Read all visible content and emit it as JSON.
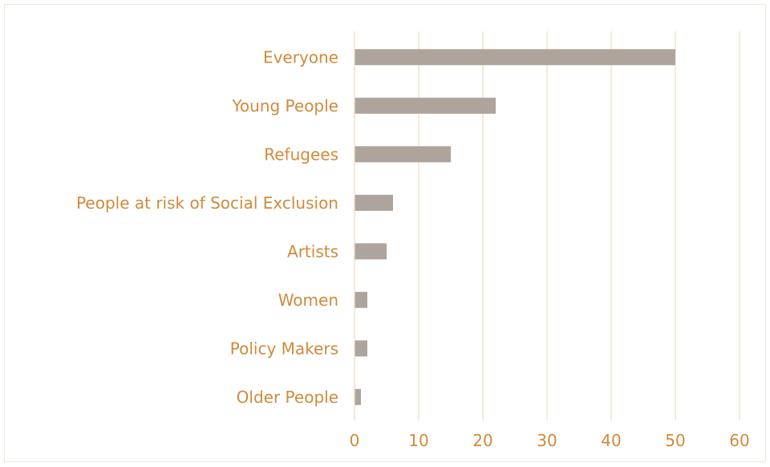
{
  "chart_data": {
    "type": "bar",
    "orientation": "horizontal",
    "categories": [
      "Everyone",
      "Young People",
      "Refugees",
      "People at risk of Social Exclusion",
      "Artists",
      "Women",
      "Policy Makers",
      "Older People"
    ],
    "values": [
      50,
      22,
      15,
      6,
      5,
      2,
      2,
      1
    ],
    "xlim": [
      0,
      60
    ],
    "xticks": [
      "0",
      "10",
      "20",
      "30",
      "40",
      "50",
      "60"
    ],
    "title": "",
    "xlabel": "",
    "ylabel": "",
    "grid": "vertical",
    "legend": "none",
    "colors": {
      "bar": "#aea49b",
      "label": "#d08a3c",
      "grid": "#f2dfcc"
    }
  }
}
